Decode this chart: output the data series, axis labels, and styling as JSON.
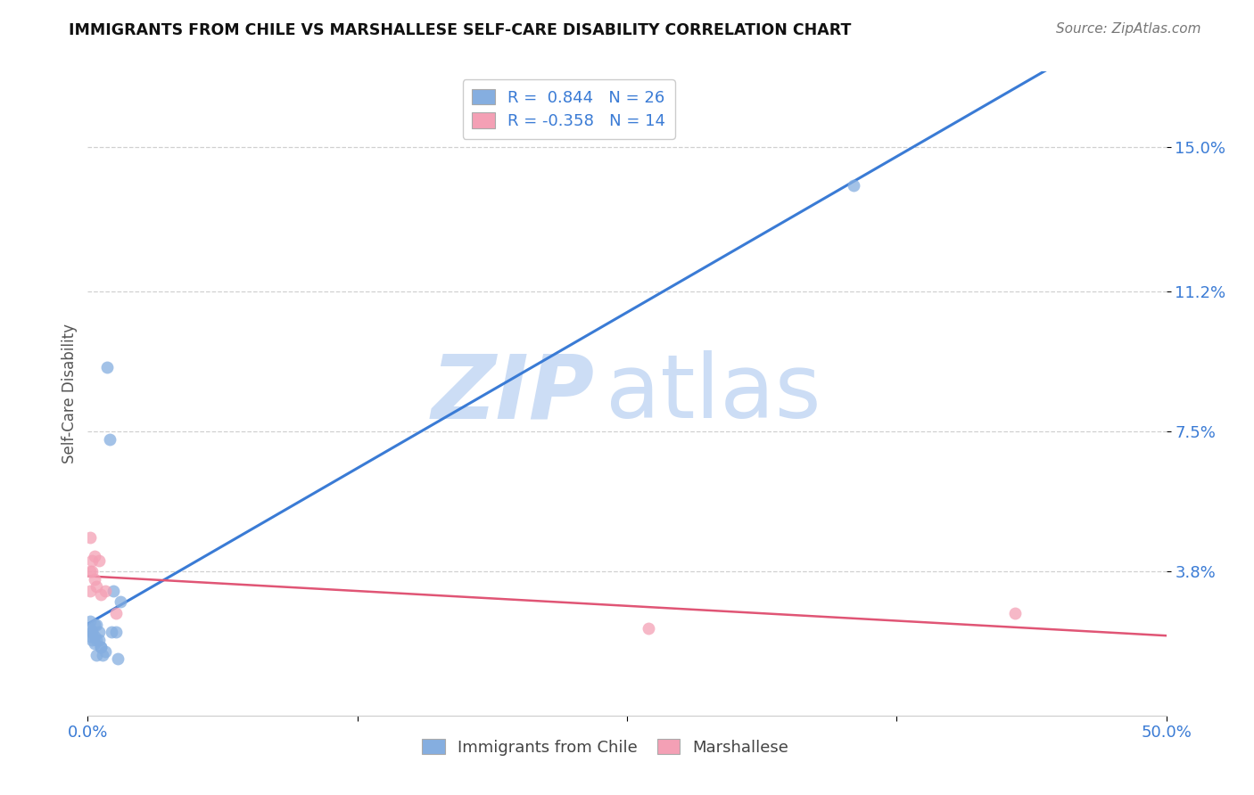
{
  "title": "IMMIGRANTS FROM CHILE VS MARSHALLESE SELF-CARE DISABILITY CORRELATION CHART",
  "source": "Source: ZipAtlas.com",
  "ylabel": "Self-Care Disability",
  "xmin": 0.0,
  "xmax": 0.5,
  "ymin": 0.0,
  "ymax": 0.17,
  "yticks": [
    0.038,
    0.075,
    0.112,
    0.15
  ],
  "ytick_labels": [
    "3.8%",
    "7.5%",
    "11.2%",
    "15.0%"
  ],
  "xticks": [
    0.0,
    0.125,
    0.25,
    0.375,
    0.5
  ],
  "xtick_labels": [
    "0.0%",
    "",
    "",
    "",
    "50.0%"
  ],
  "grid_color": "#d0d0d0",
  "background_color": "#ffffff",
  "chile_color": "#85aee0",
  "marsh_color": "#f4a0b5",
  "chile_line_color": "#3a7bd5",
  "marsh_line_color": "#e05575",
  "watermark_color": "#ddeeff",
  "watermark_zip": "ZIP",
  "watermark_atlas": "atlas",
  "chile_points": [
    [
      0.001,
      0.025
    ],
    [
      0.001,
      0.023
    ],
    [
      0.001,
      0.021
    ],
    [
      0.002,
      0.022
    ],
    [
      0.002,
      0.02
    ],
    [
      0.002,
      0.022
    ],
    [
      0.003,
      0.024
    ],
    [
      0.003,
      0.021
    ],
    [
      0.003,
      0.019
    ],
    [
      0.004,
      0.02
    ],
    [
      0.004,
      0.016
    ],
    [
      0.004,
      0.024
    ],
    [
      0.005,
      0.022
    ],
    [
      0.005,
      0.02
    ],
    [
      0.006,
      0.018
    ],
    [
      0.006,
      0.018
    ],
    [
      0.007,
      0.016
    ],
    [
      0.008,
      0.017
    ],
    [
      0.009,
      0.092
    ],
    [
      0.01,
      0.073
    ],
    [
      0.011,
      0.022
    ],
    [
      0.012,
      0.033
    ],
    [
      0.013,
      0.022
    ],
    [
      0.014,
      0.015
    ],
    [
      0.015,
      0.03
    ],
    [
      0.355,
      0.14
    ]
  ],
  "marsh_points": [
    [
      0.001,
      0.047
    ],
    [
      0.001,
      0.038
    ],
    [
      0.001,
      0.033
    ],
    [
      0.002,
      0.038
    ],
    [
      0.002,
      0.041
    ],
    [
      0.003,
      0.036
    ],
    [
      0.003,
      0.042
    ],
    [
      0.004,
      0.034
    ],
    [
      0.005,
      0.041
    ],
    [
      0.006,
      0.032
    ],
    [
      0.008,
      0.033
    ],
    [
      0.013,
      0.027
    ],
    [
      0.26,
      0.023
    ],
    [
      0.43,
      0.027
    ]
  ],
  "marker_size": 100
}
